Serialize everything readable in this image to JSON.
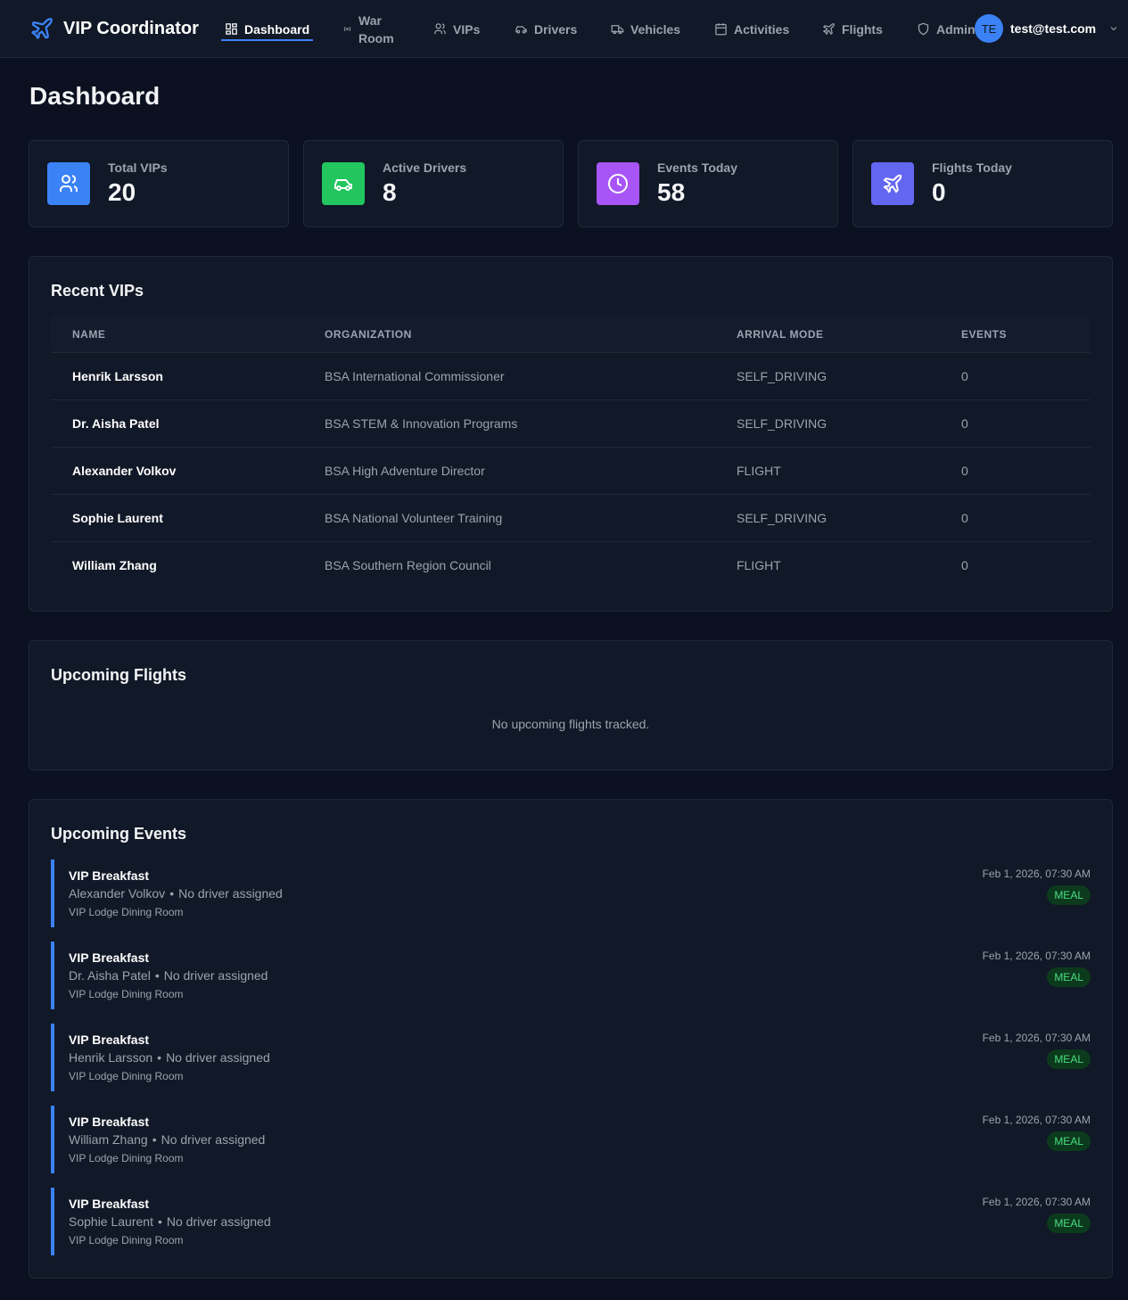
{
  "nav": {
    "brand": "VIP Coordinator",
    "items": [
      {
        "label": "Dashboard",
        "icon": "dashboard-icon"
      },
      {
        "label": "War Room",
        "icon": "radio-icon"
      },
      {
        "label": "VIPs",
        "icon": "users-icon"
      },
      {
        "label": "Drivers",
        "icon": "car-icon"
      },
      {
        "label": "Vehicles",
        "icon": "truck-icon"
      },
      {
        "label": "Activities",
        "icon": "calendar-icon"
      },
      {
        "label": "Flights",
        "icon": "plane-icon"
      },
      {
        "label": "Admin",
        "icon": "shield-icon"
      }
    ],
    "active": "Dashboard",
    "user": {
      "initials": "TE",
      "email": "test@test.com"
    }
  },
  "page": {
    "title": "Dashboard"
  },
  "stats": [
    {
      "label": "Total VIPs",
      "value": "20",
      "color": "#3b82f6",
      "icon": "users-icon"
    },
    {
      "label": "Active Drivers",
      "value": "8",
      "color": "#22c55e",
      "icon": "car-icon"
    },
    {
      "label": "Events Today",
      "value": "58",
      "color": "#a855f7",
      "icon": "clock-icon"
    },
    {
      "label": "Flights Today",
      "value": "0",
      "color": "#6366f1",
      "icon": "plane-icon"
    }
  ],
  "recent_vips": {
    "title": "Recent VIPs",
    "columns": [
      "NAME",
      "ORGANIZATION",
      "ARRIVAL MODE",
      "EVENTS"
    ],
    "rows": [
      [
        "Henrik Larsson",
        "BSA International Commissioner",
        "SELF_DRIVING",
        "0"
      ],
      [
        "Dr. Aisha Patel",
        "BSA STEM & Innovation Programs",
        "SELF_DRIVING",
        "0"
      ],
      [
        "Alexander Volkov",
        "BSA High Adventure Director",
        "FLIGHT",
        "0"
      ],
      [
        "Sophie Laurent",
        "BSA National Volunteer Training",
        "SELF_DRIVING",
        "0"
      ],
      [
        "William Zhang",
        "BSA Southern Region Council",
        "FLIGHT",
        "0"
      ]
    ]
  },
  "flights": {
    "title": "Upcoming Flights",
    "empty": "No upcoming flights tracked."
  },
  "events": {
    "title": "Upcoming Events",
    "items": [
      {
        "title": "VIP Breakfast",
        "vip": "Alexander Volkov",
        "driver": "No driver assigned",
        "location": "VIP Lodge Dining Room",
        "date": "Feb 1, 2026, 07:30 AM",
        "type": "MEAL"
      },
      {
        "title": "VIP Breakfast",
        "vip": "Dr. Aisha Patel",
        "driver": "No driver assigned",
        "location": "VIP Lodge Dining Room",
        "date": "Feb 1, 2026, 07:30 AM",
        "type": "MEAL"
      },
      {
        "title": "VIP Breakfast",
        "vip": "Henrik Larsson",
        "driver": "No driver assigned",
        "location": "VIP Lodge Dining Room",
        "date": "Feb 1, 2026, 07:30 AM",
        "type": "MEAL"
      },
      {
        "title": "VIP Breakfast",
        "vip": "William Zhang",
        "driver": "No driver assigned",
        "location": "VIP Lodge Dining Room",
        "date": "Feb 1, 2026, 07:30 AM",
        "type": "MEAL"
      },
      {
        "title": "VIP Breakfast",
        "vip": "Sophie Laurent",
        "driver": "No driver assigned",
        "location": "VIP Lodge Dining Room",
        "date": "Feb 1, 2026, 07:30 AM",
        "type": "MEAL"
      }
    ]
  }
}
